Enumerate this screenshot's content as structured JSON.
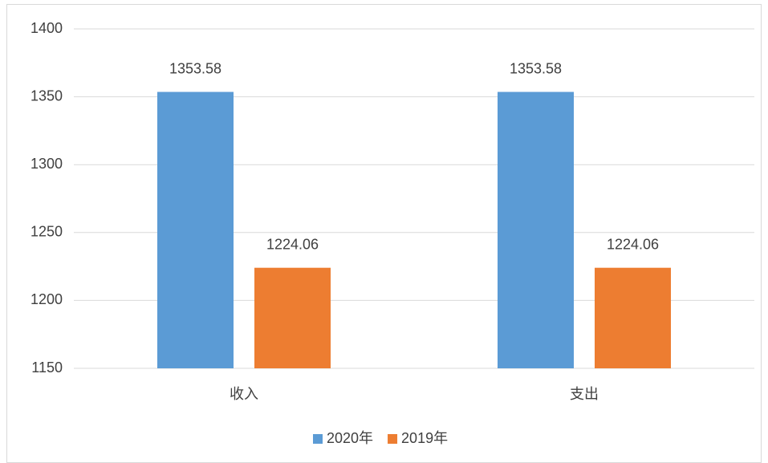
{
  "chart_data": {
    "type": "bar",
    "categories": [
      "收入",
      "支出"
    ],
    "series": [
      {
        "name": "2020年",
        "color": "#5b9bd5",
        "values": [
          1353.58,
          1353.58
        ]
      },
      {
        "name": "2019年",
        "color": "#ed7d31",
        "values": [
          1224.06,
          1224.06
        ]
      }
    ],
    "ylim": [
      1150,
      1400
    ],
    "yticks": [
      1150,
      1200,
      1250,
      1300,
      1350,
      1400
    ],
    "grid": true,
    "legend": "bottom"
  }
}
